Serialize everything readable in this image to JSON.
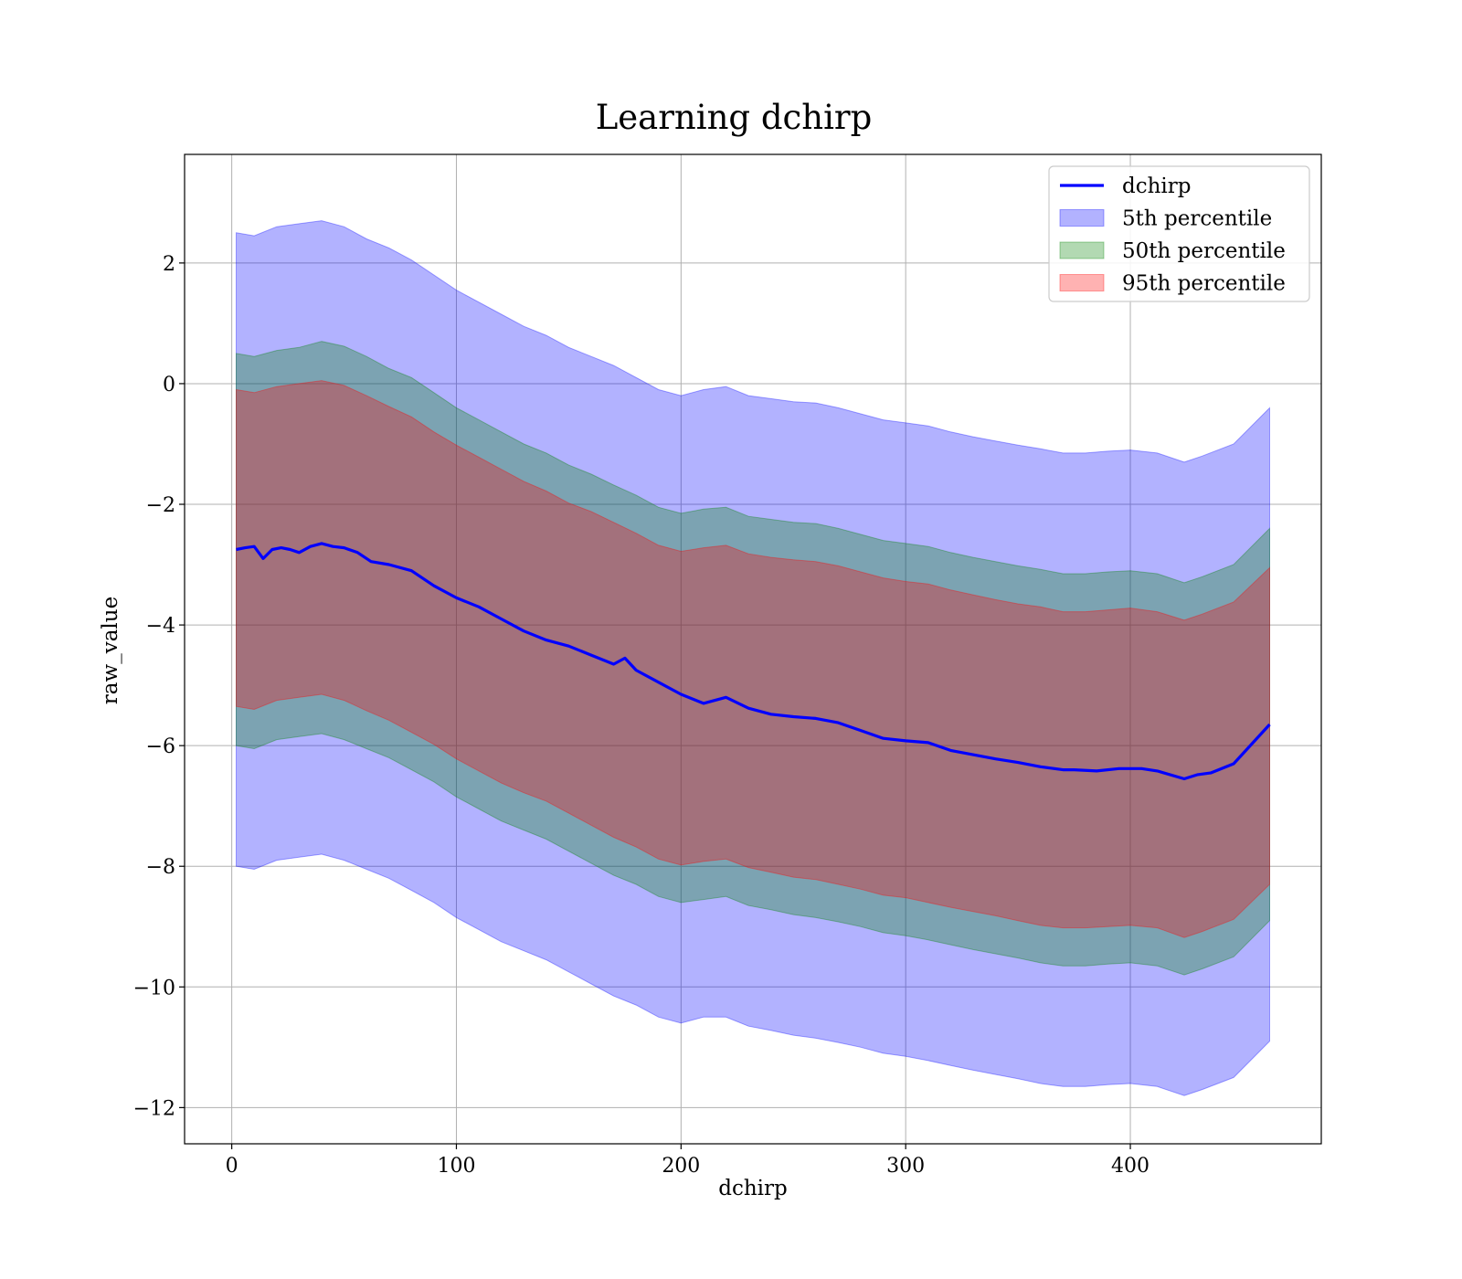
{
  "chart_data": {
    "type": "area",
    "title": "Learning dchirp",
    "xlabel": "dchirp",
    "ylabel": "raw_value",
    "xlim": [
      -21,
      485
    ],
    "ylim": [
      -12.6,
      3.8
    ],
    "xticks": [
      0,
      100,
      200,
      300,
      400
    ],
    "xtick_labels": [
      "0",
      "100",
      "200",
      "300",
      "400"
    ],
    "yticks": [
      2,
      0,
      -2,
      -4,
      -6,
      -8,
      -10,
      -12
    ],
    "ytick_labels": [
      "2",
      "0",
      "−2",
      "−4",
      "−6",
      "−8",
      "−10",
      "−12"
    ],
    "grid": true,
    "legend_position": "upper right",
    "colors": {
      "line": "#0000ff",
      "band5": "#0000ff",
      "band50": "#008000",
      "band95": "#ff0000"
    },
    "line_series": {
      "name": "dchirp",
      "x": [
        2,
        6,
        10,
        14,
        18,
        22,
        26,
        30,
        35,
        40,
        45,
        50,
        56,
        62,
        70,
        80,
        90,
        100,
        110,
        120,
        130,
        140,
        150,
        160,
        170,
        175,
        180,
        190,
        200,
        210,
        220,
        230,
        240,
        250,
        260,
        270,
        280,
        290,
        300,
        310,
        320,
        330,
        340,
        350,
        360,
        370,
        375,
        385,
        395,
        405,
        412,
        424,
        430,
        436,
        446,
        462
      ],
      "y": [
        -2.75,
        -2.72,
        -2.7,
        -2.9,
        -2.75,
        -2.72,
        -2.75,
        -2.8,
        -2.7,
        -2.65,
        -2.7,
        -2.72,
        -2.8,
        -2.95,
        -3.0,
        -3.1,
        -3.35,
        -3.55,
        -3.7,
        -3.9,
        -4.1,
        -4.25,
        -4.35,
        -4.5,
        -4.65,
        -4.55,
        -4.75,
        -4.95,
        -5.15,
        -5.3,
        -5.2,
        -5.38,
        -5.48,
        -5.52,
        -5.55,
        -5.62,
        -5.75,
        -5.88,
        -5.92,
        -5.95,
        -6.08,
        -6.15,
        -6.22,
        -6.28,
        -6.35,
        -6.4,
        -6.4,
        -6.42,
        -6.38,
        -6.38,
        -6.42,
        -6.55,
        -6.48,
        -6.45,
        -6.3,
        -5.65
      ]
    },
    "bands": [
      {
        "name": "5th percentile",
        "x": [
          2,
          10,
          20,
          30,
          40,
          50,
          60,
          70,
          80,
          90,
          100,
          110,
          120,
          130,
          140,
          150,
          160,
          170,
          180,
          190,
          200,
          210,
          220,
          230,
          240,
          250,
          260,
          270,
          280,
          290,
          300,
          310,
          320,
          330,
          340,
          350,
          360,
          370,
          380,
          390,
          400,
          412,
          424,
          432,
          446,
          462
        ],
        "upper": [
          2.5,
          2.45,
          2.6,
          2.65,
          2.7,
          2.6,
          2.4,
          2.25,
          2.05,
          1.8,
          1.55,
          1.35,
          1.15,
          0.95,
          0.8,
          0.6,
          0.45,
          0.3,
          0.1,
          -0.1,
          -0.2,
          -0.1,
          -0.05,
          -0.2,
          -0.25,
          -0.3,
          -0.32,
          -0.4,
          -0.5,
          -0.6,
          -0.65,
          -0.7,
          -0.8,
          -0.88,
          -0.95,
          -1.02,
          -1.08,
          -1.15,
          -1.15,
          -1.12,
          -1.1,
          -1.15,
          -1.3,
          -1.2,
          -1.0,
          -0.4
        ],
        "lower": [
          -8.0,
          -8.05,
          -7.9,
          -7.85,
          -7.8,
          -7.9,
          -8.05,
          -8.2,
          -8.4,
          -8.6,
          -8.85,
          -9.05,
          -9.25,
          -9.4,
          -9.55,
          -9.75,
          -9.95,
          -10.15,
          -10.3,
          -10.5,
          -10.6,
          -10.5,
          -10.5,
          -10.65,
          -10.72,
          -10.8,
          -10.85,
          -10.92,
          -11.0,
          -11.1,
          -11.15,
          -11.22,
          -11.3,
          -11.38,
          -11.45,
          -11.52,
          -11.6,
          -11.65,
          -11.65,
          -11.62,
          -11.6,
          -11.65,
          -11.8,
          -11.7,
          -11.5,
          -10.9
        ]
      },
      {
        "name": "50th percentile",
        "x": [
          2,
          10,
          20,
          30,
          40,
          50,
          60,
          70,
          80,
          90,
          100,
          110,
          120,
          130,
          140,
          150,
          160,
          170,
          180,
          190,
          200,
          210,
          220,
          230,
          240,
          250,
          260,
          270,
          280,
          290,
          300,
          310,
          320,
          330,
          340,
          350,
          360,
          370,
          380,
          390,
          400,
          412,
          424,
          432,
          446,
          462
        ],
        "upper": [
          0.5,
          0.45,
          0.55,
          0.6,
          0.7,
          0.62,
          0.45,
          0.25,
          0.1,
          -0.15,
          -0.4,
          -0.6,
          -0.8,
          -1.0,
          -1.15,
          -1.35,
          -1.5,
          -1.68,
          -1.85,
          -2.05,
          -2.15,
          -2.08,
          -2.05,
          -2.2,
          -2.25,
          -2.3,
          -2.32,
          -2.4,
          -2.5,
          -2.6,
          -2.65,
          -2.7,
          -2.8,
          -2.88,
          -2.95,
          -3.02,
          -3.08,
          -3.15,
          -3.15,
          -3.12,
          -3.1,
          -3.15,
          -3.3,
          -3.2,
          -3.0,
          -2.4
        ],
        "lower": [
          -6.0,
          -6.05,
          -5.9,
          -5.85,
          -5.8,
          -5.9,
          -6.05,
          -6.2,
          -6.4,
          -6.6,
          -6.85,
          -7.05,
          -7.25,
          -7.4,
          -7.55,
          -7.75,
          -7.95,
          -8.15,
          -8.3,
          -8.5,
          -8.6,
          -8.55,
          -8.5,
          -8.65,
          -8.72,
          -8.8,
          -8.85,
          -8.92,
          -9.0,
          -9.1,
          -9.15,
          -9.22,
          -9.3,
          -9.38,
          -9.45,
          -9.52,
          -9.6,
          -9.65,
          -9.65,
          -9.62,
          -9.6,
          -9.65,
          -9.8,
          -9.7,
          -9.5,
          -8.9
        ]
      },
      {
        "name": "95th percentile",
        "x": [
          2,
          10,
          20,
          30,
          40,
          50,
          60,
          70,
          80,
          90,
          100,
          110,
          120,
          130,
          140,
          150,
          160,
          170,
          180,
          190,
          200,
          210,
          220,
          230,
          240,
          250,
          260,
          270,
          280,
          290,
          300,
          310,
          320,
          330,
          340,
          350,
          360,
          370,
          380,
          390,
          400,
          412,
          424,
          432,
          446,
          462
        ],
        "upper": [
          -0.1,
          -0.15,
          -0.05,
          0.0,
          0.05,
          -0.03,
          -0.2,
          -0.38,
          -0.55,
          -0.8,
          -1.02,
          -1.22,
          -1.42,
          -1.62,
          -1.78,
          -1.98,
          -2.12,
          -2.3,
          -2.48,
          -2.68,
          -2.78,
          -2.72,
          -2.68,
          -2.82,
          -2.88,
          -2.92,
          -2.95,
          -3.02,
          -3.12,
          -3.22,
          -3.28,
          -3.32,
          -3.42,
          -3.5,
          -3.58,
          -3.65,
          -3.7,
          -3.78,
          -3.78,
          -3.75,
          -3.72,
          -3.78,
          -3.92,
          -3.82,
          -3.62,
          -3.05
        ],
        "lower": [
          -5.35,
          -5.4,
          -5.25,
          -5.2,
          -5.15,
          -5.25,
          -5.42,
          -5.58,
          -5.78,
          -5.98,
          -6.22,
          -6.42,
          -6.62,
          -6.78,
          -6.92,
          -7.12,
          -7.32,
          -7.52,
          -7.68,
          -7.88,
          -7.98,
          -7.92,
          -7.88,
          -8.02,
          -8.1,
          -8.18,
          -8.22,
          -8.3,
          -8.38,
          -8.48,
          -8.52,
          -8.6,
          -8.68,
          -8.75,
          -8.82,
          -8.9,
          -8.98,
          -9.02,
          -9.02,
          -9.0,
          -8.98,
          -9.02,
          -9.18,
          -9.08,
          -8.88,
          -8.3
        ]
      }
    ],
    "legend": [
      {
        "label": "dchirp",
        "kind": "line",
        "color": "#0000ff"
      },
      {
        "label": "5th percentile",
        "kind": "patch",
        "color": "#0000ff"
      },
      {
        "label": "50th percentile",
        "kind": "patch",
        "color": "#008000"
      },
      {
        "label": "95th percentile",
        "kind": "patch",
        "color": "#ff0000"
      }
    ]
  }
}
